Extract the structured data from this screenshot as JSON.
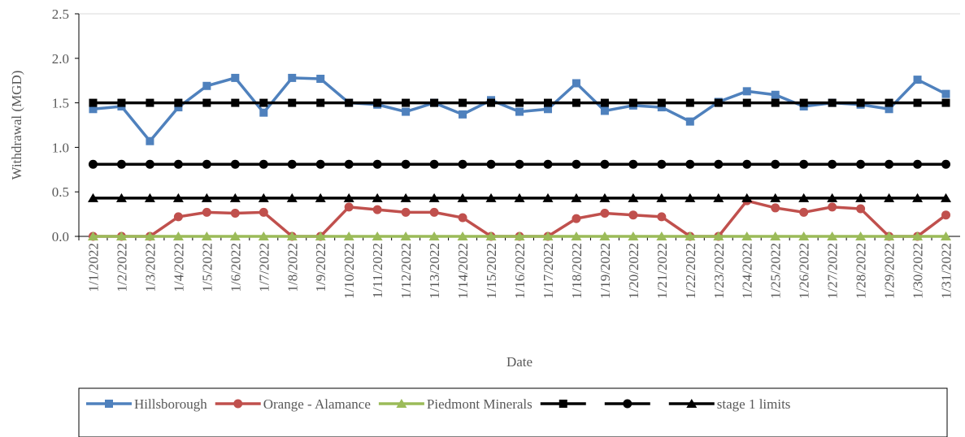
{
  "chart_data": {
    "type": "line",
    "xlabel": "Date",
    "ylabel": "Withdrawal (MGD)",
    "categories": [
      "1/1/2022",
      "1/2/2022",
      "1/3/2022",
      "1/4/2022",
      "1/5/2022",
      "1/6/2022",
      "1/7/2022",
      "1/8/2022",
      "1/9/2022",
      "1/10/2022",
      "1/11/2022",
      "1/12/2022",
      "1/13/2022",
      "1/14/2022",
      "1/15/2022",
      "1/16/2022",
      "1/17/2022",
      "1/18/2022",
      "1/19/2022",
      "1/20/2022",
      "1/21/2022",
      "1/22/2022",
      "1/23/2022",
      "1/24/2022",
      "1/25/2022",
      "1/26/2022",
      "1/27/2022",
      "1/28/2022",
      "1/29/2022",
      "1/30/2022",
      "1/31/2022"
    ],
    "series": [
      {
        "name": "Hillsborough",
        "color": "#4f81bd",
        "marker": "square",
        "values": [
          1.43,
          1.46,
          1.07,
          1.45,
          1.69,
          1.78,
          1.39,
          1.78,
          1.77,
          1.5,
          1.48,
          1.4,
          1.5,
          1.37,
          1.53,
          1.4,
          1.43,
          1.72,
          1.41,
          1.47,
          1.45,
          1.29,
          1.51,
          1.63,
          1.59,
          1.46,
          1.5,
          1.48,
          1.43,
          1.76,
          1.6
        ]
      },
      {
        "name": "Orange - Alamance",
        "color": "#c0504d",
        "marker": "circle",
        "values": [
          0,
          0,
          0,
          0.22,
          0.27,
          0.26,
          0.27,
          0,
          0,
          0.33,
          0.3,
          0.27,
          0.27,
          0.21,
          0,
          0,
          0,
          0.2,
          0.26,
          0.24,
          0.22,
          0,
          0,
          0.4,
          0.32,
          0.27,
          0.33,
          0.31,
          0,
          0,
          0.24
        ]
      },
      {
        "name": "Piedmont Minerals",
        "color": "#9bbb59",
        "marker": "triangle",
        "values": [
          0,
          0,
          0,
          0,
          0,
          0,
          0,
          0,
          0,
          0,
          0,
          0,
          0,
          0,
          0,
          0,
          0,
          0,
          0,
          0,
          0,
          0,
          0,
          0,
          0,
          0,
          0,
          0,
          0,
          0,
          0
        ]
      },
      {
        "name": null,
        "color": "#000000",
        "marker": "square",
        "values": [
          1.5,
          1.5,
          1.5,
          1.5,
          1.5,
          1.5,
          1.5,
          1.5,
          1.5,
          1.5,
          1.5,
          1.5,
          1.5,
          1.5,
          1.5,
          1.5,
          1.5,
          1.5,
          1.5,
          1.5,
          1.5,
          1.5,
          1.5,
          1.5,
          1.5,
          1.5,
          1.5,
          1.5,
          1.5,
          1.5,
          1.5
        ]
      },
      {
        "name": null,
        "color": "#000000",
        "marker": "circle",
        "values": [
          0.81,
          0.81,
          0.81,
          0.81,
          0.81,
          0.81,
          0.81,
          0.81,
          0.81,
          0.81,
          0.81,
          0.81,
          0.81,
          0.81,
          0.81,
          0.81,
          0.81,
          0.81,
          0.81,
          0.81,
          0.81,
          0.81,
          0.81,
          0.81,
          0.81,
          0.81,
          0.81,
          0.81,
          0.81,
          0.81,
          0.81
        ]
      },
      {
        "name": "stage 1 limits",
        "color": "#000000",
        "marker": "triangle",
        "values": [
          0.43,
          0.43,
          0.43,
          0.43,
          0.43,
          0.43,
          0.43,
          0.43,
          0.43,
          0.43,
          0.43,
          0.43,
          0.43,
          0.43,
          0.43,
          0.43,
          0.43,
          0.43,
          0.43,
          0.43,
          0.43,
          0.43,
          0.43,
          0.43,
          0.43,
          0.43,
          0.43,
          0.43,
          0.43,
          0.43,
          0.43
        ]
      }
    ],
    "ylim": [
      0,
      2.5
    ],
    "yticks": [
      {
        "value": 0,
        "label": "0.0"
      },
      0.5,
      {
        "value": 1,
        "label": "1.0"
      },
      1.5,
      {
        "value": 2,
        "label": "2.0"
      },
      2.5
    ],
    "grid": false,
    "legend": "bottom"
  }
}
